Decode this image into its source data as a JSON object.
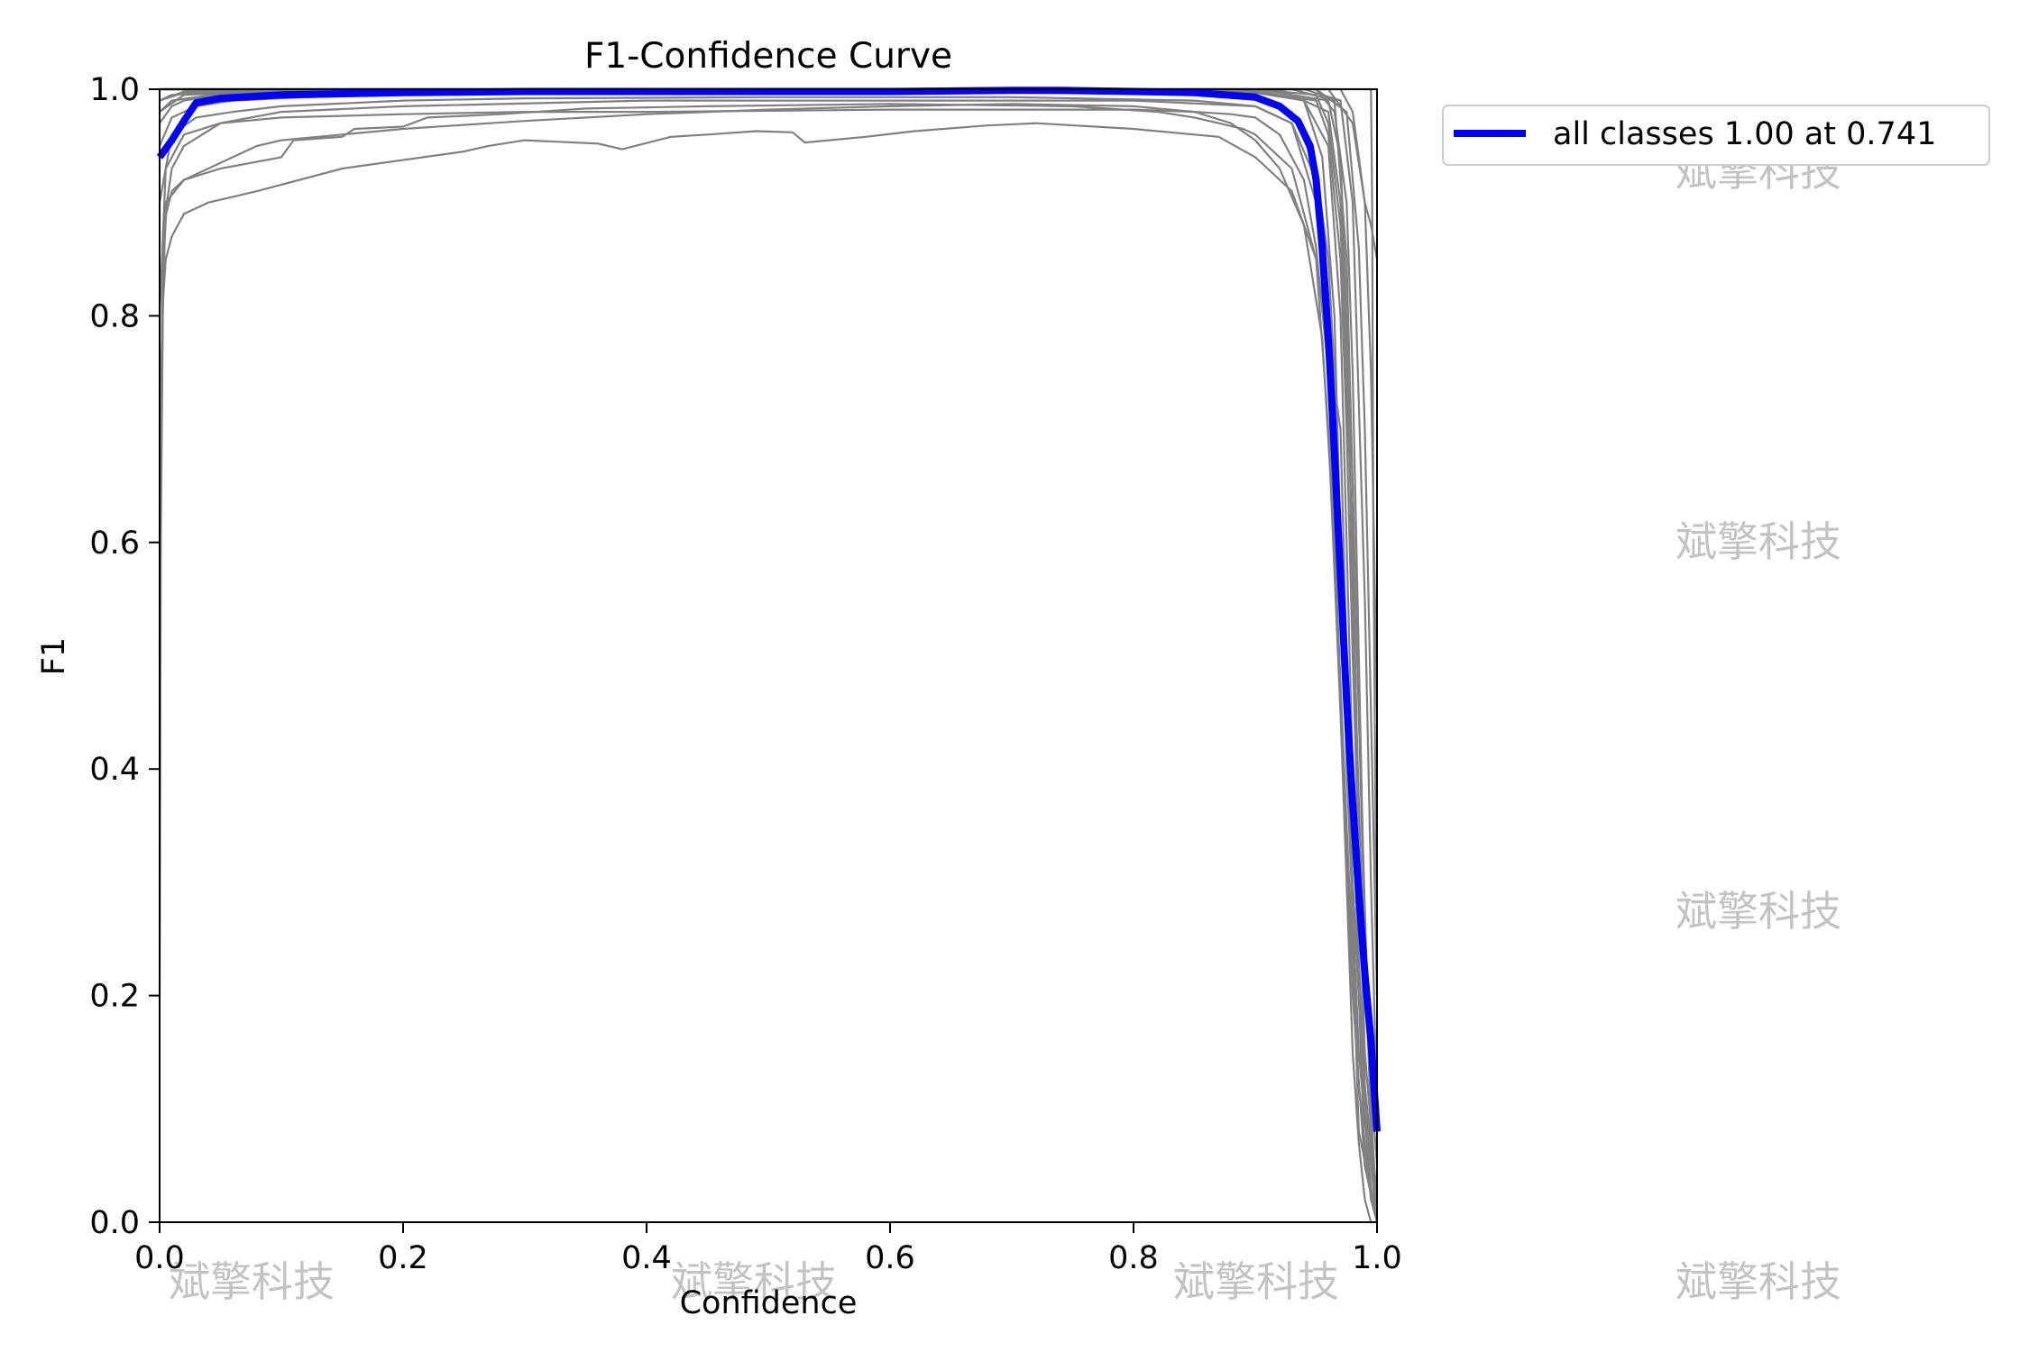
{
  "chart_data": {
    "type": "line",
    "title": "F1-Confidence Curve",
    "xlabel": "Confidence",
    "ylabel": "F1",
    "xlim": [
      0.0,
      1.0
    ],
    "ylim": [
      0.0,
      1.0
    ],
    "xticks": [
      "0.0",
      "0.2",
      "0.4",
      "0.6",
      "0.8",
      "1.0"
    ],
    "yticks": [
      "0.0",
      "0.2",
      "0.4",
      "0.6",
      "0.8",
      "1.0"
    ],
    "grid": false,
    "legend_position": "outside-right-top",
    "legend": [
      "all classes 1.00 at 0.741"
    ],
    "colors": {
      "class_curves": "#808080",
      "all_classes": "#0000ff"
    },
    "watermark": "斌擎科技",
    "series_all_classes": {
      "name": "all classes 1.00 at 0.741",
      "x": [
        0.0,
        0.01,
        0.02,
        0.03,
        0.05,
        0.1,
        0.2,
        0.3,
        0.4,
        0.5,
        0.6,
        0.7,
        0.741,
        0.8,
        0.85,
        0.9,
        0.92,
        0.935,
        0.945,
        0.95,
        0.955,
        0.96,
        0.965,
        0.97,
        0.975,
        0.98,
        0.985,
        0.99,
        0.995,
        1.0
      ],
      "y": [
        0.94,
        0.955,
        0.972,
        0.988,
        0.992,
        0.995,
        0.997,
        0.998,
        0.998,
        0.998,
        0.998,
        0.999,
        0.999,
        0.998,
        0.997,
        0.993,
        0.985,
        0.972,
        0.95,
        0.92,
        0.86,
        0.78,
        0.68,
        0.57,
        0.46,
        0.37,
        0.29,
        0.22,
        0.16,
        0.08
      ]
    },
    "series_classes": [
      {
        "x": [
          0.0,
          0.001,
          0.003,
          0.006,
          0.01,
          0.02,
          0.05,
          0.1,
          0.2,
          0.4,
          0.6,
          0.8,
          0.9,
          0.93,
          0.95,
          0.96,
          0.965,
          0.97,
          0.975,
          0.98,
          0.985,
          0.99,
          0.995,
          1.0
        ],
        "y": [
          0.2,
          0.6,
          0.85,
          0.9,
          0.93,
          0.95,
          0.97,
          0.98,
          0.985,
          0.99,
          0.99,
          0.99,
          0.985,
          0.97,
          0.9,
          0.75,
          0.6,
          0.45,
          0.3,
          0.15,
          0.07,
          0.02,
          0.0,
          0.0
        ]
      },
      {
        "x": [
          0.0,
          0.002,
          0.005,
          0.01,
          0.02,
          0.04,
          0.08,
          0.15,
          0.25,
          0.27,
          0.3,
          0.36,
          0.38,
          0.42,
          0.45,
          0.49,
          0.52,
          0.53,
          0.58,
          0.62,
          0.68,
          0.72,
          0.8,
          0.87,
          0.9,
          0.93,
          0.95,
          0.97,
          0.975,
          0.98,
          0.985,
          1.0
        ],
        "y": [
          0.5,
          0.8,
          0.85,
          0.87,
          0.89,
          0.9,
          0.91,
          0.93,
          0.945,
          0.95,
          0.955,
          0.952,
          0.947,
          0.958,
          0.96,
          0.963,
          0.962,
          0.953,
          0.958,
          0.963,
          0.968,
          0.97,
          0.965,
          0.958,
          0.94,
          0.91,
          0.85,
          0.7,
          0.5,
          0.25,
          0.08,
          0.0
        ]
      },
      {
        "x": [
          0.0,
          0.003,
          0.01,
          0.02,
          0.04,
          0.06,
          0.08,
          0.1,
          0.15,
          0.2,
          0.3,
          0.4,
          0.5,
          0.6,
          0.7,
          0.8,
          0.85,
          0.88,
          0.9,
          0.92,
          0.94,
          0.955,
          0.965,
          0.975,
          0.985,
          0.995,
          1.0
        ],
        "y": [
          0.6,
          0.88,
          0.91,
          0.92,
          0.93,
          0.94,
          0.95,
          0.955,
          0.96,
          0.965,
          0.972,
          0.978,
          0.982,
          0.985,
          0.987,
          0.985,
          0.98,
          0.97,
          0.955,
          0.93,
          0.88,
          0.78,
          0.6,
          0.35,
          0.12,
          0.02,
          0.0
        ]
      },
      {
        "x": [
          0.0,
          0.005,
          0.02,
          0.05,
          0.1,
          0.11,
          0.15,
          0.16,
          0.2,
          0.22,
          0.28,
          0.35,
          0.45,
          0.6,
          0.75,
          0.82,
          0.85,
          0.87,
          0.89,
          0.9,
          0.91,
          0.93,
          0.95,
          0.96,
          0.97,
          0.98,
          0.99,
          1.0
        ],
        "y": [
          0.7,
          0.9,
          0.92,
          0.93,
          0.94,
          0.955,
          0.958,
          0.965,
          0.967,
          0.975,
          0.978,
          0.983,
          0.985,
          0.987,
          0.985,
          0.98,
          0.975,
          0.97,
          0.965,
          0.96,
          0.95,
          0.93,
          0.85,
          0.7,
          0.45,
          0.2,
          0.05,
          0.0
        ]
      },
      {
        "x": [
          0.0,
          0.005,
          0.02,
          0.05,
          0.1,
          0.2,
          0.3,
          0.4,
          0.5,
          0.6,
          0.7,
          0.8,
          0.85,
          0.88,
          0.9,
          0.92,
          0.94,
          0.95,
          0.96,
          0.97,
          0.98,
          0.99,
          1.0
        ],
        "y": [
          0.8,
          0.93,
          0.96,
          0.97,
          0.975,
          0.978,
          0.98,
          0.98,
          0.981,
          0.982,
          0.982,
          0.982,
          0.98,
          0.978,
          0.975,
          0.96,
          0.92,
          0.86,
          0.75,
          0.55,
          0.3,
          0.1,
          0.0
        ]
      },
      {
        "x": [
          0.0,
          0.01,
          0.03,
          0.06,
          0.1,
          0.2,
          0.3,
          0.5,
          0.7,
          0.85,
          0.9,
          0.93,
          0.95,
          0.96,
          0.97,
          0.98,
          0.99,
          1.0
        ],
        "y": [
          0.9,
          0.96,
          0.975,
          0.98,
          0.985,
          0.99,
          0.992,
          0.993,
          0.993,
          0.99,
          0.985,
          0.97,
          0.92,
          0.82,
          0.6,
          0.35,
          0.12,
          0.02
        ]
      },
      {
        "x": [
          0.0,
          0.01,
          0.03,
          0.06,
          0.12,
          0.2,
          0.3,
          0.5,
          0.7,
          0.8,
          0.9,
          0.93,
          0.95,
          0.96,
          0.965,
          0.97,
          0.975,
          0.98,
          0.99,
          1.0
        ],
        "y": [
          0.95,
          0.975,
          0.985,
          0.99,
          0.993,
          0.995,
          0.996,
          0.997,
          0.997,
          0.996,
          0.994,
          0.98,
          0.93,
          0.85,
          0.75,
          0.6,
          0.45,
          0.3,
          0.1,
          0.02
        ]
      },
      {
        "x": [
          0.0,
          0.01,
          0.02,
          0.05,
          0.1,
          0.3,
          0.5,
          0.7,
          0.9,
          0.94,
          0.96,
          0.97,
          0.975,
          0.98,
          0.985,
          0.99,
          1.0
        ],
        "y": [
          0.97,
          0.985,
          0.99,
          0.995,
          0.997,
          0.998,
          0.998,
          0.998,
          0.997,
          0.99,
          0.95,
          0.8,
          0.6,
          0.4,
          0.2,
          0.05,
          0.0
        ]
      },
      {
        "x": [
          0.0,
          0.01,
          0.05,
          0.1,
          0.5,
          0.9,
          0.95,
          0.96,
          0.97,
          0.975,
          0.98,
          0.99,
          1.0
        ],
        "y": [
          0.98,
          0.99,
          0.996,
          0.998,
          0.999,
          0.998,
          0.99,
          0.96,
          0.85,
          0.7,
          0.5,
          0.15,
          0.02
        ]
      },
      {
        "x": [
          0.0,
          0.01,
          0.05,
          0.1,
          0.5,
          0.9,
          0.94,
          0.955,
          0.965,
          0.97,
          0.975,
          0.985,
          0.995,
          1.0
        ],
        "y": [
          0.99,
          0.995,
          0.998,
          0.999,
          1.0,
          0.999,
          0.99,
          0.94,
          0.8,
          0.6,
          0.4,
          0.15,
          0.03,
          0.0
        ]
      },
      {
        "x": [
          0.0,
          0.02,
          0.1,
          0.5,
          0.9,
          0.95,
          0.96,
          0.97,
          0.98,
          0.985,
          0.99,
          1.0
        ],
        "y": [
          0.99,
          0.997,
          0.999,
          1.0,
          1.0,
          0.995,
          0.97,
          0.88,
          0.6,
          0.35,
          0.12,
          0.0
        ]
      },
      {
        "x": [
          0.0,
          0.02,
          0.1,
          0.5,
          0.9,
          0.95,
          0.965,
          0.975,
          0.98,
          0.985,
          0.99,
          0.995,
          1.0
        ],
        "y": [
          1.0,
          1.0,
          1.0,
          1.0,
          1.0,
          1.0,
          0.98,
          0.9,
          0.75,
          0.5,
          0.25,
          0.08,
          0.0
        ]
      },
      {
        "x": [
          0.0,
          0.02,
          0.1,
          0.5,
          0.9,
          0.96,
          0.97,
          0.975,
          0.98,
          0.99,
          1.0
        ],
        "y": [
          0.99,
          0.998,
          1.0,
          1.0,
          1.0,
          0.99,
          0.94,
          0.8,
          0.55,
          0.2,
          0.05
        ]
      },
      {
        "x": [
          0.0,
          0.02,
          0.1,
          0.5,
          0.92,
          0.96,
          0.97,
          0.98,
          0.985,
          0.99,
          0.995,
          1.0
        ],
        "y": [
          0.98,
          0.995,
          0.999,
          1.0,
          1.0,
          0.98,
          0.9,
          0.65,
          0.45,
          0.25,
          0.1,
          0.0
        ]
      },
      {
        "x": [
          0.0,
          0.02,
          0.1,
          0.5,
          0.93,
          0.965,
          0.975,
          0.985,
          0.995,
          1.0
        ],
        "y": [
          1.0,
          1.0,
          1.0,
          1.0,
          1.0,
          0.99,
          0.85,
          0.45,
          0.1,
          0.0
        ]
      },
      {
        "x": [
          0.0,
          0.02,
          0.1,
          0.5,
          0.94,
          0.97,
          0.98,
          0.99,
          0.995,
          1.0
        ],
        "y": [
          1.0,
          1.0,
          1.0,
          1.0,
          1.0,
          0.99,
          0.9,
          0.55,
          0.3,
          0.1
        ]
      },
      {
        "x": [
          0.0,
          0.02,
          0.1,
          0.5,
          0.95,
          0.975,
          0.985,
          0.99,
          0.995,
          1.0
        ],
        "y": [
          1.0,
          1.0,
          1.0,
          1.0,
          1.0,
          0.98,
          0.86,
          0.7,
          0.45,
          0.2
        ]
      },
      {
        "x": [
          0.0,
          0.02,
          0.1,
          0.5,
          0.96,
          0.98,
          0.99,
          0.995,
          1.0
        ],
        "y": [
          1.0,
          1.0,
          1.0,
          1.0,
          1.0,
          0.97,
          0.9,
          0.75,
          0.45
        ]
      },
      {
        "x": [
          0.0,
          0.02,
          0.1,
          0.5,
          0.97,
          0.98,
          0.985,
          0.99,
          0.995,
          1.0
        ],
        "y": [
          1.0,
          1.0,
          1.0,
          1.0,
          1.0,
          0.98,
          0.94,
          0.9,
          0.88,
          0.85
        ]
      },
      {
        "x": [
          0.0,
          0.5,
          0.995,
          0.996,
          0.997,
          1.0
        ],
        "y": [
          1.0,
          1.0,
          1.0,
          0.9,
          0.6,
          0.2
        ]
      }
    ]
  }
}
